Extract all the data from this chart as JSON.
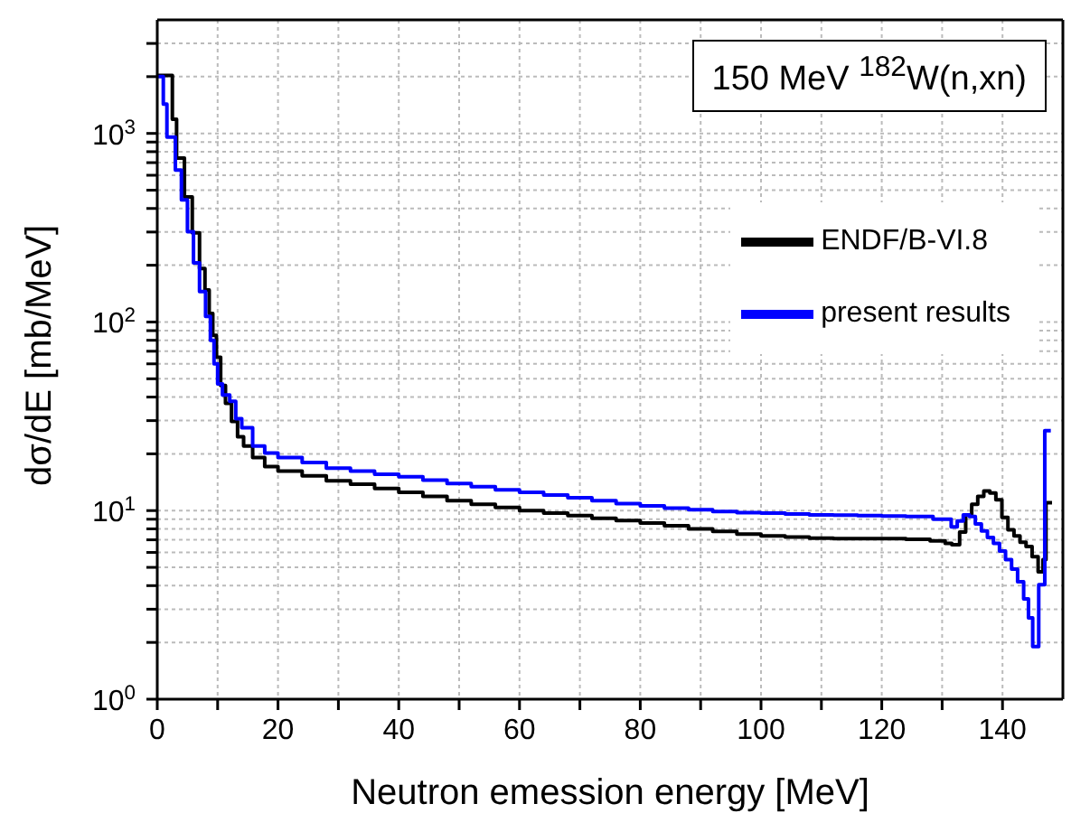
{
  "chart_data": {
    "type": "step",
    "xlabel": "Neutron emession energy [MeV]",
    "ylabel": "dσ/dE [mb/MeV]",
    "annotations": [
      "150 MeV $^{182}$W(n,xn)"
    ],
    "log": "y",
    "grid": true,
    "legend": "top right",
    "line_style": "solid",
    "marker": "none",
    "xlim": [
      0,
      150
    ],
    "xticks": [
      0,
      {
        "value": 10,
        "label": null
      },
      20,
      {
        "value": 30,
        "label": null
      },
      40,
      {
        "value": 50,
        "label": null
      },
      60,
      {
        "value": 70,
        "label": null
      },
      80,
      {
        "value": 90,
        "label": null
      },
      100,
      {
        "value": 110,
        "label": null
      },
      120,
      {
        "value": 130,
        "label": null
      },
      140
    ],
    "ylim": [
      1,
      4000
    ],
    "yticks": [
      {
        "value": 1,
        "label": "10$^{0}$"
      },
      {
        "value": 2,
        "label": null
      },
      {
        "value": 3,
        "label": null
      },
      {
        "value": 4,
        "label": null
      },
      {
        "value": 5,
        "label": null
      },
      {
        "value": 6,
        "label": null
      },
      {
        "value": 7,
        "label": null
      },
      {
        "value": 8,
        "label": null
      },
      {
        "value": 9,
        "label": null
      },
      {
        "value": 10,
        "label": "10$^{1}$"
      },
      {
        "value": 20,
        "label": null
      },
      {
        "value": 30,
        "label": null
      },
      {
        "value": 40,
        "label": null
      },
      {
        "value": 50,
        "label": null
      },
      {
        "value": 60,
        "label": null
      },
      {
        "value": 70,
        "label": null
      },
      {
        "value": 80,
        "label": null
      },
      {
        "value": 90,
        "label": null
      },
      {
        "value": 100,
        "label": "10$^{2}$"
      },
      {
        "value": 200,
        "label": null
      },
      {
        "value": 300,
        "label": null
      },
      {
        "value": 400,
        "label": null
      },
      {
        "value": 500,
        "label": null
      },
      {
        "value": 600,
        "label": null
      },
      {
        "value": 700,
        "label": null
      },
      {
        "value": 800,
        "label": null
      },
      {
        "value": 900,
        "label": null
      },
      {
        "value": 1000,
        "label": "10$^{3}$"
      },
      {
        "value": 2000,
        "label": null
      },
      {
        "value": 3000,
        "label": null
      }
    ],
    "series": [
      {
        "name": "ENDF/B-VI.8",
        "color": "#000000",
        "x": [
          0,
          2.5,
          3.2,
          4.5,
          5.8,
          7,
          7.9,
          8.6,
          9.2,
          9.8,
          10.5,
          11.3,
          12.3,
          13.3,
          14.3,
          15.8,
          17.8,
          20,
          24,
          28,
          32,
          36,
          40,
          44,
          48,
          52,
          56,
          60,
          64,
          68,
          72,
          76,
          80,
          84,
          88,
          92,
          96,
          100,
          104,
          108,
          112,
          116,
          120,
          124,
          128,
          130.5,
          131.6,
          132.9,
          133.9,
          134.9,
          135.9,
          136.9,
          137.9,
          138.9,
          139.9,
          140.9,
          141.9,
          142.9,
          143.9,
          144.9,
          145.9,
          146.7,
          147.2,
          148.2
        ],
        "values": [
          2030,
          1190,
          740,
          461,
          297,
          192,
          148,
          111,
          85,
          65,
          46,
          37,
          29.7,
          24.6,
          22,
          19.1,
          17.1,
          16.2,
          15.3,
          14.4,
          13.8,
          13.1,
          12.5,
          11.9,
          11.3,
          10.8,
          10.4,
          10,
          9.7,
          9.4,
          9.1,
          8.85,
          8.6,
          8.3,
          8,
          7.75,
          7.5,
          7.35,
          7.25,
          7.15,
          7.1,
          7.1,
          7.1,
          7.05,
          6.9,
          6.7,
          6.6,
          7.7,
          9.5,
          10.8,
          11.9,
          12.7,
          12.4,
          11.4,
          9.2,
          7.9,
          7.35,
          6.8,
          6.45,
          5.7,
          4.74,
          5.5,
          11,
          11
        ]
      },
      {
        "name": "present results",
        "color": "#0000ff",
        "x": [
          0,
          1,
          1.6,
          3,
          4,
          5,
          6,
          7,
          8,
          8.8,
          9.4,
          10,
          10.8,
          12,
          13,
          14,
          15.8,
          17.8,
          20,
          24,
          28,
          32,
          36,
          40,
          44,
          48,
          52,
          56,
          60,
          64,
          68,
          72,
          76,
          80,
          84,
          88,
          92,
          96,
          100,
          104,
          108,
          112,
          116,
          120,
          124,
          128.5,
          131.5,
          132.5,
          133.5,
          134.5,
          135.5,
          136.5,
          137.5,
          138.5,
          139.5,
          140.5,
          141.5,
          142.5,
          143.5,
          144.3,
          145,
          146,
          147,
          148
        ],
        "values": [
          2000,
          1430,
          957,
          640,
          444,
          301,
          206,
          145,
          107,
          80,
          60,
          47,
          41,
          38,
          30.7,
          27.5,
          22,
          20.2,
          19.1,
          18,
          16.8,
          16.2,
          15.6,
          15.1,
          14.5,
          13.9,
          13.4,
          12.9,
          12.5,
          12.1,
          11.7,
          11.3,
          10.9,
          10.6,
          10.3,
          10.1,
          9.9,
          9.75,
          9.7,
          9.6,
          9.5,
          9.45,
          9.4,
          9.36,
          9.3,
          9,
          8.2,
          8.8,
          9.5,
          9.3,
          8.5,
          7.8,
          7.2,
          6.7,
          6.1,
          5.5,
          4.9,
          4.2,
          3.4,
          2.7,
          1.9,
          4.05,
          26.5,
          26.5
        ]
      }
    ]
  }
}
